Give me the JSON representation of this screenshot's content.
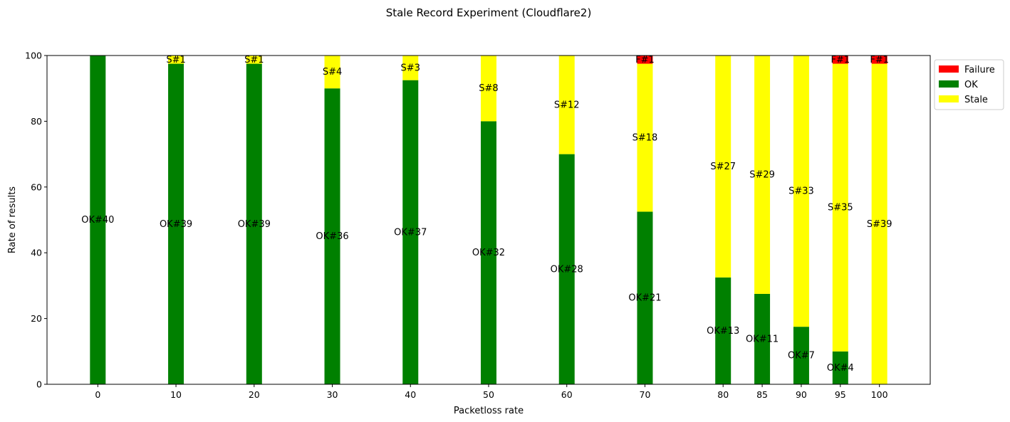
{
  "chart_data": {
    "type": "bar",
    "stacked": true,
    "title": "Stale Record Experiment (Cloudflare2)",
    "xlabel": "Packetloss rate",
    "ylabel": "Rate of results",
    "ylim": [
      0,
      100
    ],
    "xlim": [
      -6.5,
      106.5
    ],
    "yticks": [
      0,
      20,
      40,
      60,
      80,
      100
    ],
    "grid": false,
    "legend_position": "outside-top-right",
    "x": [
      0,
      10,
      20,
      30,
      40,
      50,
      60,
      70,
      80,
      85,
      90,
      95,
      100
    ],
    "categories": [
      "0",
      "10",
      "20",
      "30",
      "40",
      "50",
      "60",
      "70",
      "80",
      "85",
      "90",
      "95",
      "100"
    ],
    "total_per_category": 40,
    "legend": [
      {
        "name": "Failure",
        "color": "#ff0000"
      },
      {
        "name": "OK",
        "color": "#008000"
      },
      {
        "name": "Stale",
        "color": "#ffff00"
      }
    ],
    "series": [
      {
        "name": "OK",
        "color": "#008000",
        "counts": [
          40,
          39,
          39,
          36,
          37,
          32,
          28,
          21,
          13,
          11,
          7,
          4,
          0
        ],
        "labels": [
          "OK#40",
          "OK#39",
          "OK#39",
          "OK#36",
          "OK#37",
          "OK#32",
          "OK#28",
          "OK#21",
          "OK#13",
          "OK#11",
          "OK#7",
          "OK#4",
          ""
        ]
      },
      {
        "name": "Stale",
        "color": "#ffff00",
        "counts": [
          0,
          1,
          1,
          4,
          3,
          8,
          12,
          18,
          27,
          29,
          33,
          35,
          39
        ],
        "labels": [
          "",
          "S#1",
          "S#1",
          "S#4",
          "S#3",
          "S#8",
          "S#12",
          "S#18",
          "S#27",
          "S#29",
          "S#33",
          "S#35",
          "S#39"
        ]
      },
      {
        "name": "Failure",
        "color": "#ff0000",
        "counts": [
          0,
          0,
          0,
          0,
          0,
          0,
          0,
          1,
          0,
          0,
          0,
          1,
          1
        ],
        "labels": [
          "",
          "",
          "",
          "",
          "",
          "",
          "",
          "F#1",
          "",
          "",
          "",
          "F#1",
          "F#1"
        ]
      }
    ]
  }
}
